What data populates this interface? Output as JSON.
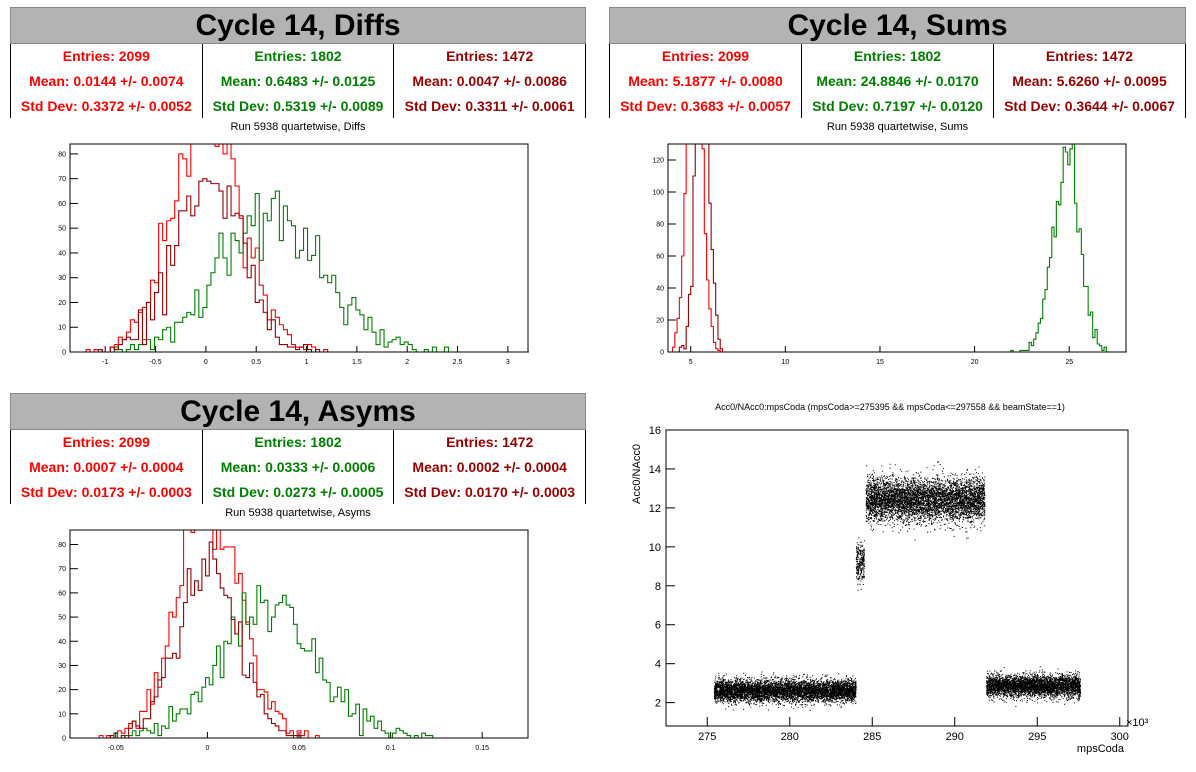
{
  "colors": {
    "red": "#ff0000",
    "green": "#008000",
    "darkred": "#990000"
  },
  "panels": [
    {
      "id": "diffs",
      "title": "Cycle 14, Diffs",
      "run_label": "Run 5938 quartetwise, Diffs",
      "stats": [
        {
          "entries": "Entries: 2099",
          "mean": "Mean: 0.0144 +/- 0.0074",
          "std": "Std Dev: 0.3372 +/- 0.0052",
          "color": "#ff0000"
        },
        {
          "entries": "Entries: 1802",
          "mean": "Mean: 0.6483 +/- 0.0125",
          "std": "Std Dev: 0.5319 +/- 0.0089",
          "color": "#008000"
        },
        {
          "entries": "Entries: 1472",
          "mean": "Mean: 0.0047 +/- 0.0086",
          "std": "Std Dev: 0.3311 +/- 0.0061",
          "color": "#990000"
        }
      ]
    },
    {
      "id": "sums",
      "title": "Cycle 14, Sums",
      "run_label": "Run 5938 quartetwise, Sums",
      "stats": [
        {
          "entries": "Entries: 2099",
          "mean": "Mean: 5.1877 +/- 0.0080",
          "std": "Std Dev: 0.3683 +/- 0.0057",
          "color": "#ff0000"
        },
        {
          "entries": "Entries: 1802",
          "mean": "Mean: 24.8846 +/- 0.0170",
          "std": "Std Dev: 0.7197 +/- 0.0120",
          "color": "#008000"
        },
        {
          "entries": "Entries: 1472",
          "mean": "Mean: 5.6260 +/- 0.0095",
          "std": "Std Dev: 0.3644 +/- 0.0067",
          "color": "#990000"
        }
      ]
    },
    {
      "id": "asyms",
      "title": "Cycle 14, Asyms",
      "run_label": "Run 5938 quartetwise, Asyms",
      "stats": [
        {
          "entries": "Entries: 2099",
          "mean": "Mean: 0.0007 +/- 0.0004",
          "std": "Std Dev: 0.0173 +/- 0.0003",
          "color": "#ff0000"
        },
        {
          "entries": "Entries: 1802",
          "mean": "Mean: 0.0333 +/- 0.0006",
          "std": "Std Dev: 0.0273 +/- 0.0005",
          "color": "#008000"
        },
        {
          "entries": "Entries: 1472",
          "mean": "Mean: 0.0002 +/- 0.0004",
          "std": "Std Dev: 0.0170 +/- 0.0003",
          "color": "#990000"
        }
      ]
    }
  ],
  "chart_data": [
    {
      "id": "diffs",
      "type": "histogram",
      "xlim": [
        -1.35,
        3.2
      ],
      "ylim": [
        0,
        84
      ],
      "xticks": [
        "-1",
        "-0.5",
        "0",
        "0.5",
        "1",
        "1.5",
        "2",
        "2.5",
        "3"
      ],
      "xtick_values": [
        -1,
        -0.5,
        0,
        0.5,
        1,
        1.5,
        2,
        2.5,
        3
      ],
      "yticks": [
        "0",
        "10",
        "20",
        "30",
        "40",
        "50",
        "60",
        "70",
        "80"
      ],
      "series": [
        {
          "color": "#ff0000",
          "mean": 0.0144,
          "std": 0.3372,
          "entries": 2099,
          "binwidth": 0.04
        },
        {
          "color": "#008000",
          "mean": 0.6483,
          "std": 0.5319,
          "entries": 1802,
          "binwidth": 0.04
        },
        {
          "color": "#990000",
          "mean": 0.0047,
          "std": 0.3311,
          "entries": 1472,
          "binwidth": 0.04
        }
      ]
    },
    {
      "id": "sums",
      "type": "histogram",
      "xlim": [
        3.8,
        28.0
      ],
      "ylim": [
        0,
        130
      ],
      "xticks": [
        "5",
        "10",
        "15",
        "20",
        "25"
      ],
      "xtick_values": [
        5,
        10,
        15,
        20,
        25
      ],
      "yticks": [
        "0",
        "20",
        "40",
        "60",
        "80",
        "100",
        "120"
      ],
      "series": [
        {
          "color": "#ff0000",
          "mean": 5.1877,
          "std": 0.3683,
          "entries": 2099,
          "binwidth": 0.12
        },
        {
          "color": "#008000",
          "mean": 24.8846,
          "std": 0.7197,
          "entries": 1802,
          "binwidth": 0.12
        },
        {
          "color": "#990000",
          "mean": 5.626,
          "std": 0.3644,
          "entries": 1472,
          "binwidth": 0.12
        }
      ]
    },
    {
      "id": "asyms",
      "type": "histogram",
      "xlim": [
        -0.075,
        0.175
      ],
      "ylim": [
        0,
        86
      ],
      "xticks": [
        "-0.05",
        "0",
        "0.05",
        "0.1",
        "0.15"
      ],
      "xtick_values": [
        -0.05,
        0,
        0.05,
        0.1,
        0.15
      ],
      "yticks": [
        "0",
        "10",
        "20",
        "30",
        "40",
        "50",
        "60",
        "70",
        "80"
      ],
      "series": [
        {
          "color": "#ff0000",
          "mean": 0.0007,
          "std": 0.0173,
          "entries": 2099,
          "binwidth": 0.002
        },
        {
          "color": "#008000",
          "mean": 0.0333,
          "std": 0.0273,
          "entries": 1802,
          "binwidth": 0.002
        },
        {
          "color": "#990000",
          "mean": 0.0002,
          "std": 0.017,
          "entries": 1472,
          "binwidth": 0.002
        }
      ]
    },
    {
      "id": "scatter",
      "type": "scatter",
      "title": "Acc0/NAcc0:mpsCoda (mpsCoda>=275395 && mpsCoda<=297558 && beamState==1)",
      "xlabel": "mpsCoda",
      "ylabel": "Acc0/NAcc0",
      "xexp": "×10³",
      "xlim": [
        272.5,
        300.5
      ],
      "ylim": [
        0.8,
        16
      ],
      "xticks": [
        "275",
        "280",
        "285",
        "290",
        "295",
        "300"
      ],
      "xtick_values": [
        275,
        280,
        285,
        290,
        295,
        300
      ],
      "yticks": [
        "2",
        "4",
        "6",
        "8",
        "10",
        "12",
        "14",
        "16"
      ],
      "ytick_values": [
        2,
        4,
        6,
        8,
        10,
        12,
        14,
        16
      ],
      "clusters": [
        {
          "x": [
            275.4,
            284.0
          ],
          "y_mean": 2.6,
          "y_std": 0.28,
          "n": 6000
        },
        {
          "x": [
            284.0,
            284.5
          ],
          "y_mean": 9.2,
          "y_std": 0.5,
          "n": 260
        },
        {
          "x": [
            284.6,
            291.8
          ],
          "y_mean": 12.4,
          "y_std": 0.55,
          "n": 5500
        },
        {
          "x": [
            291.9,
            297.6
          ],
          "y_mean": 2.85,
          "y_std": 0.28,
          "n": 4000
        }
      ]
    }
  ]
}
